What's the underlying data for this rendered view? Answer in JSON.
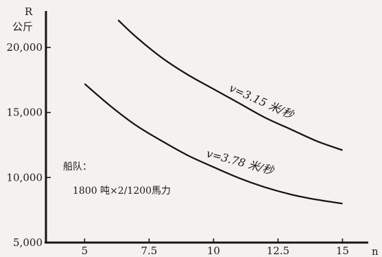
{
  "chart_data": {
    "type": "line",
    "x": [
      5,
      6,
      7,
      8,
      9,
      10,
      11,
      12,
      13,
      14,
      15
    ],
    "series": [
      {
        "name": "v=3.15 米/秒",
        "x": [
          6.3,
          7,
          8,
          9,
          10,
          11,
          12,
          13,
          14,
          15
        ],
        "values": [
          22100,
          20800,
          19200,
          17900,
          16800,
          15700,
          14600,
          13700,
          12800,
          12100
        ]
      },
      {
        "name": "v=3.78 米/秒",
        "x": [
          5,
          6,
          7,
          8,
          9,
          10,
          11,
          12,
          13,
          14,
          15
        ],
        "values": [
          17200,
          15500,
          14000,
          12800,
          11700,
          10800,
          9950,
          9250,
          8700,
          8300,
          8000
        ]
      }
    ],
    "xticks": [
      "5",
      "7.5",
      "10",
      "12.5",
      "15"
    ],
    "yticks": [
      "5,000",
      "10,000",
      "15,000",
      "20,000"
    ],
    "xlabel": "n",
    "ylabel_top": "R",
    "ylabel_unit": "公斤",
    "xlim": [
      3.5,
      16.0
    ],
    "ylim": [
      5000,
      22800
    ],
    "annotations": {
      "fleet_title": "船队：",
      "fleet_detail": "1800 吨×2/1200馬力"
    }
  }
}
